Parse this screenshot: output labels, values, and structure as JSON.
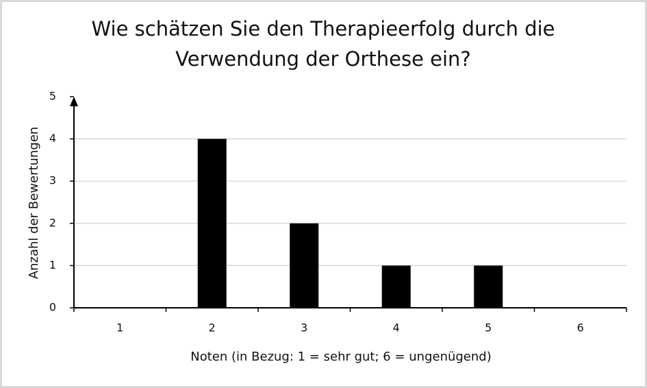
{
  "chart_data": {
    "type": "bar",
    "title": [
      "Wie schätzen Sie den Therapieerfolg durch die",
      "Verwendung der Orthese ein?"
    ],
    "x_label": "Noten (in Bezug: 1 = sehr gut; 6 = ungenügend)",
    "y_label": "Anzahl der Bewertungen",
    "categories": [
      "1",
      "2",
      "3",
      "4",
      "5",
      "6"
    ],
    "values": [
      0,
      4,
      2,
      1,
      1,
      0
    ],
    "color": "#000000",
    "ylim": [
      0,
      5
    ],
    "yticks": [
      0,
      1,
      2,
      3,
      4,
      5
    ],
    "grid": true
  }
}
